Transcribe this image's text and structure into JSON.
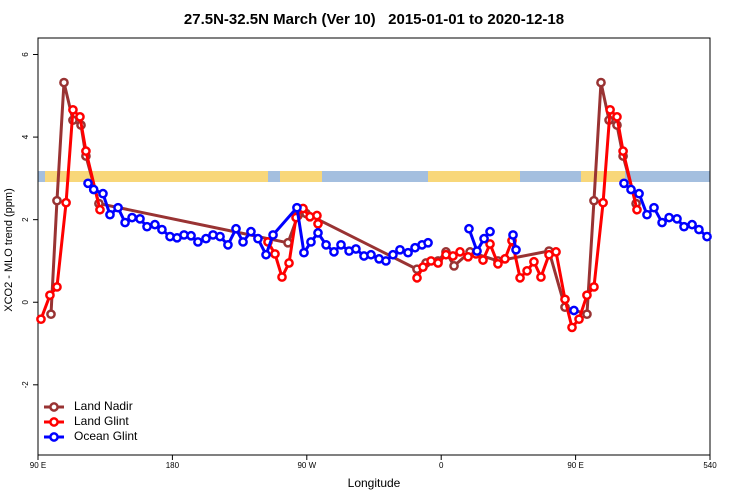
{
  "chart_data": {
    "type": "line",
    "title": "27.5N-32.5N March (Ver 10)   2015-01-01 to 2020-12-18",
    "x_label": "Longitude",
    "y_label": "XCO2 - MLO trend (ppm)",
    "xlim": [
      90,
      540
    ],
    "ylim": [
      -3.7,
      6.4
    ],
    "xticks": [
      {
        "value": 90,
        "label": "90 E"
      },
      180,
      {
        "value": 270,
        "label": "90 W"
      },
      {
        "value": 360,
        "label": "0"
      },
      {
        "value": 450,
        "label": "90 E"
      },
      540
    ],
    "yticks": [
      -2,
      0,
      2,
      4,
      6
    ],
    "legend": "bottom-left",
    "series": [
      {
        "name": "Land Nadir",
        "color": "#993333",
        "x": [
          98.7,
          102.7,
          107.4,
          113.4,
          118.8,
          122.1,
          130.8,
          257.4,
          264.1,
          269.5,
          343.8,
          349.8,
          357.9,
          363.2,
          368.6,
          379.3,
          398.0,
          432.2,
          442.9,
          457.6,
          462.3,
          467.0,
          472.4,
          477.7,
          481.8,
          490.5
        ],
        "values": [
          -0.29,
          2.46,
          5.32,
          4.41,
          4.29,
          3.54,
          2.39,
          1.44,
          2.1,
          2.15,
          0.8,
          0.95,
          1.0,
          1.22,
          0.88,
          1.22,
          1.0,
          1.24,
          -0.12,
          -0.29,
          2.46,
          5.32,
          4.41,
          4.29,
          3.54,
          2.39
        ]
      },
      {
        "name": "Land Glint",
        "color": "#ff0000",
        "x": [
          92,
          98,
          102.7,
          108.8,
          113.4,
          118.1,
          122.1,
          131.5,
          190,
          244,
          248.7,
          253.4,
          258.1,
          262.8,
          267.5,
          272.1,
          276.8,
          277.5,
          310,
          343.8,
          347.8,
          353.2,
          357.9,
          363.2,
          367.9,
          372.6,
          378,
          383.3,
          388,
          392.7,
          398,
          402.7,
          407.4,
          412.8,
          417.5,
          422.1,
          426.8,
          432.2,
          436.9,
          442.9,
          447.6,
          452.3,
          457.6,
          462.3,
          468.4,
          473.1,
          477.7,
          481.8,
          491.1
        ],
        "values": [
          -0.41,
          0.17,
          0.37,
          2.41,
          4.66,
          4.49,
          3.66,
          2.24,
          null,
          1.46,
          1.17,
          0.61,
          0.95,
          2.05,
          2.27,
          2.07,
          2.1,
          1.9,
          null,
          0.59,
          0.85,
          1.0,
          0.95,
          1.15,
          1.12,
          1.22,
          1.1,
          1.17,
          1.02,
          1.41,
          0.93,
          1.05,
          1.49,
          0.59,
          0.76,
          0.98,
          0.61,
          1.15,
          1.22,
          0.07,
          -0.61,
          -0.41,
          0.17,
          0.37,
          2.41,
          4.66,
          4.49,
          3.66,
          2.24
        ]
      },
      {
        "name": "Ocean Glint",
        "color": "#0000ff",
        "x": [
          123.5,
          127.3,
          133.5,
          138.2,
          143.6,
          148.3,
          153,
          158.3,
          163,
          168.3,
          173,
          178.4,
          183.1,
          187.8,
          192.5,
          197.1,
          202.5,
          207.2,
          211.9,
          217.2,
          222.6,
          227.3,
          232.6,
          237.3,
          242.7,
          247.4,
          263.4,
          268.1,
          272.8,
          277.5,
          282.9,
          288.2,
          292.9,
          298.3,
          302.9,
          308.3,
          313,
          318.4,
          323,
          327.7,
          332.4,
          337.8,
          342.5,
          347.2,
          351.2,
          365,
          378.6,
          384,
          388.7,
          392.7,
          400,
          408.1,
          410.1,
          430,
          448.9,
          465,
          482.4,
          487.1,
          492.5,
          497.8,
          502.5,
          507.9,
          512.6,
          517.9,
          522.6,
          528,
          532.6,
          538
        ],
        "values": [
          2.88,
          2.73,
          2.63,
          2.12,
          2.29,
          1.93,
          2.05,
          2.02,
          1.83,
          1.88,
          1.76,
          1.59,
          1.56,
          1.63,
          1.61,
          1.46,
          1.54,
          1.63,
          1.59,
          1.39,
          1.78,
          1.46,
          1.71,
          1.54,
          1.15,
          1.63,
          2.29,
          1.2,
          1.46,
          1.68,
          1.39,
          1.22,
          1.39,
          1.24,
          1.29,
          1.12,
          1.15,
          1.05,
          1.0,
          1.15,
          1.27,
          1.2,
          1.32,
          1.39,
          1.44,
          null,
          1.78,
          1.24,
          1.54,
          1.71,
          null,
          1.63,
          1.27,
          null,
          -0.2,
          null,
          2.88,
          2.73,
          2.63,
          2.12,
          2.29,
          1.93,
          2.05,
          2.02,
          1.83,
          1.88,
          1.76,
          1.59
        ]
      }
    ]
  }
}
